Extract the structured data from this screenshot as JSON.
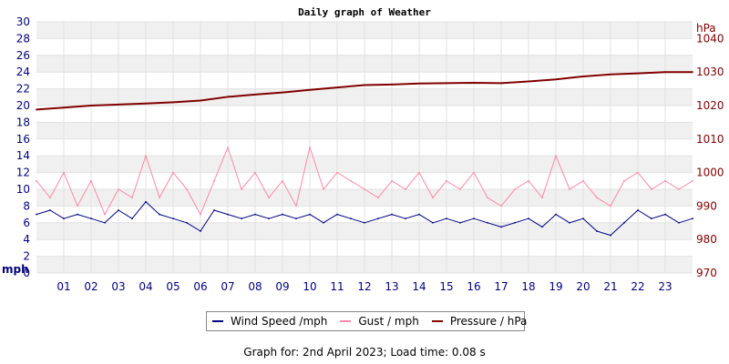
{
  "chart_data": {
    "type": "line",
    "title": "Daily graph of Weather",
    "x_ticks": [
      "01",
      "02",
      "03",
      "04",
      "05",
      "06",
      "07",
      "08",
      "09",
      "10",
      "11",
      "12",
      "13",
      "14",
      "15",
      "16",
      "17",
      "18",
      "19",
      "20",
      "21",
      "22",
      "23"
    ],
    "xlim": [
      0,
      24
    ],
    "left_axis": {
      "unit": "mph",
      "ylim": [
        0,
        30
      ],
      "ticks": [
        0,
        2,
        4,
        6,
        8,
        10,
        12,
        14,
        16,
        18,
        20,
        22,
        24,
        26,
        28,
        30
      ],
      "color": "#000080"
    },
    "right_axis": {
      "unit": "hPa",
      "ylim": [
        970,
        1045
      ],
      "ticks": [
        970,
        980,
        990,
        1000,
        1010,
        1020,
        1030,
        1040
      ],
      "color": "#800000"
    },
    "grid": true,
    "legend_position": "bottom",
    "series": [
      {
        "name": "Wind Speed /mph",
        "axis": "left",
        "color": "#000080",
        "x": [
          0,
          0.5,
          1,
          1.5,
          2,
          2.5,
          3,
          3.5,
          4,
          4.5,
          5,
          5.5,
          6,
          6.5,
          7,
          7.5,
          8,
          8.5,
          9,
          9.5,
          10,
          10.5,
          11,
          11.5,
          12,
          12.5,
          13,
          13.5,
          14,
          14.5,
          15,
          15.5,
          16,
          16.5,
          17,
          17.5,
          18,
          18.5,
          19,
          19.5,
          20,
          20.5,
          21,
          21.5,
          22,
          22.5,
          23,
          23.5,
          24
        ],
        "values": [
          7,
          7.5,
          6.5,
          7,
          6.5,
          6,
          7.5,
          6.5,
          8.5,
          7,
          6.5,
          6,
          5,
          7.5,
          7,
          6.5,
          7,
          6.5,
          7,
          6.5,
          7,
          6,
          7,
          6.5,
          6,
          6.5,
          7,
          6.5,
          7,
          6,
          6.5,
          6,
          6.5,
          6,
          5.5,
          6,
          6.5,
          5.5,
          7,
          6,
          6.5,
          5,
          4.5,
          6,
          7.5,
          6.5,
          7,
          6,
          6.5
        ]
      },
      {
        "name": "Gust / mph",
        "axis": "left",
        "color": "#ff88aa",
        "x": [
          0,
          0.5,
          1,
          1.5,
          2,
          2.5,
          3,
          3.5,
          4,
          4.5,
          5,
          5.5,
          6,
          6.5,
          7,
          7.5,
          8,
          8.5,
          9,
          9.5,
          10,
          10.5,
          11,
          11.5,
          12,
          12.5,
          13,
          13.5,
          14,
          14.5,
          15,
          15.5,
          16,
          16.5,
          17,
          17.5,
          18,
          18.5,
          19,
          19.5,
          20,
          20.5,
          21,
          21.5,
          22,
          22.5,
          23,
          23.5,
          24
        ],
        "values": [
          11,
          9,
          12,
          8,
          11,
          7,
          10,
          9,
          14,
          9,
          12,
          10,
          7,
          11,
          15,
          10,
          12,
          9,
          11,
          8,
          15,
          10,
          12,
          11,
          10,
          9,
          11,
          10,
          12,
          9,
          11,
          10,
          12,
          9,
          8,
          10,
          11,
          9,
          14,
          10,
          11,
          9,
          8,
          11,
          12,
          10,
          11,
          10,
          11
        ]
      },
      {
        "name": "Pressure / hPa",
        "axis": "right",
        "color": "#800000",
        "x": [
          0,
          1,
          2,
          3,
          4,
          5,
          6,
          7,
          8,
          9,
          10,
          11,
          12,
          13,
          14,
          15,
          16,
          17,
          18,
          19,
          20,
          21,
          22,
          23,
          24
        ],
        "values": [
          1018.8,
          1019.4,
          1020.0,
          1020.3,
          1020.6,
          1021.0,
          1021.5,
          1022.6,
          1023.3,
          1023.9,
          1024.7,
          1025.4,
          1026.1,
          1026.3,
          1026.6,
          1026.7,
          1026.8,
          1026.7,
          1027.2,
          1027.8,
          1028.7,
          1029.3,
          1029.6,
          1030.0,
          1030.0
        ]
      }
    ]
  },
  "footer_text": "Graph for: 2nd April 2023; Load time: 0.08 s"
}
